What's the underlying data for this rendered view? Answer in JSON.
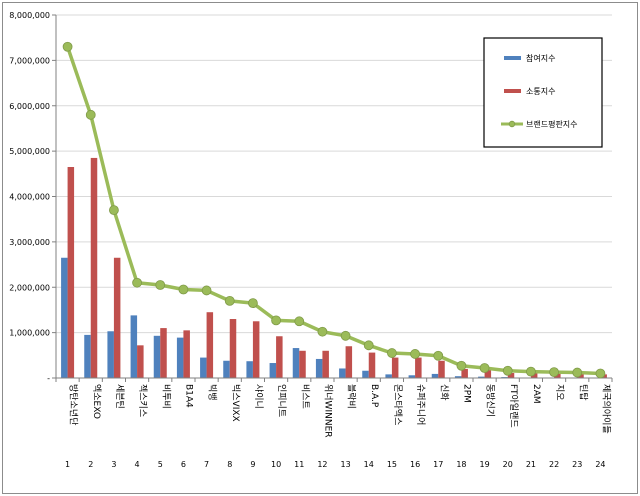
{
  "chart_data": {
    "type": "bar",
    "title": "",
    "xlabel": "",
    "ylabel": "",
    "ylim": [
      0,
      8000000
    ],
    "yticks": [
      "-",
      "1,000,000",
      "2,000,000",
      "3,000,000",
      "4,000,000",
      "5,000,000",
      "6,000,000",
      "7,000,000",
      "8,000,000"
    ],
    "grid": true,
    "legend_position": "top-right",
    "ranks": [
      "1",
      "2",
      "3",
      "4",
      "5",
      "6",
      "7",
      "8",
      "9",
      "10",
      "11",
      "12",
      "13",
      "14",
      "15",
      "16",
      "17",
      "18",
      "19",
      "20",
      "21",
      "22",
      "23",
      "24"
    ],
    "categories": [
      "방탄소년단",
      "엑소EXO",
      "세븐틴",
      "젝스키스",
      "비투비",
      "B1A4",
      "빅뱅",
      "빅스VIXX",
      "샤이니",
      "인피니트",
      "비스트",
      "위너WINNER",
      "블락비",
      "B.A.P",
      "몬스타엑스",
      "슈퍼주니어",
      "신화",
      "2PM",
      "동방신기",
      "FT아일랜드",
      "2AM",
      "지오",
      "틴탑",
      "제국의아이들"
    ],
    "series": [
      {
        "name": "참여지수",
        "kind": "bar",
        "color": "#4f81bd",
        "values": [
          2650000,
          950000,
          1030000,
          1380000,
          930000,
          890000,
          450000,
          380000,
          370000,
          330000,
          660000,
          420000,
          210000,
          160000,
          80000,
          60000,
          90000,
          40000,
          30000,
          20000,
          10000,
          10000,
          10000,
          10000
        ]
      },
      {
        "name": "소통지수",
        "kind": "bar",
        "color": "#c0504d",
        "values": [
          4650000,
          4850000,
          2650000,
          720000,
          1100000,
          1050000,
          1450000,
          1300000,
          1250000,
          920000,
          600000,
          600000,
          700000,
          560000,
          450000,
          450000,
          380000,
          200000,
          180000,
          110000,
          110000,
          100000,
          80000,
          80000
        ]
      },
      {
        "name": "브랜드평판지수",
        "kind": "line",
        "color": "#9bbb59",
        "values": [
          7300000,
          5800000,
          3700000,
          2100000,
          2050000,
          1950000,
          1930000,
          1700000,
          1650000,
          1270000,
          1250000,
          1020000,
          930000,
          720000,
          550000,
          530000,
          490000,
          270000,
          220000,
          160000,
          140000,
          130000,
          120000,
          100000
        ]
      }
    ]
  }
}
